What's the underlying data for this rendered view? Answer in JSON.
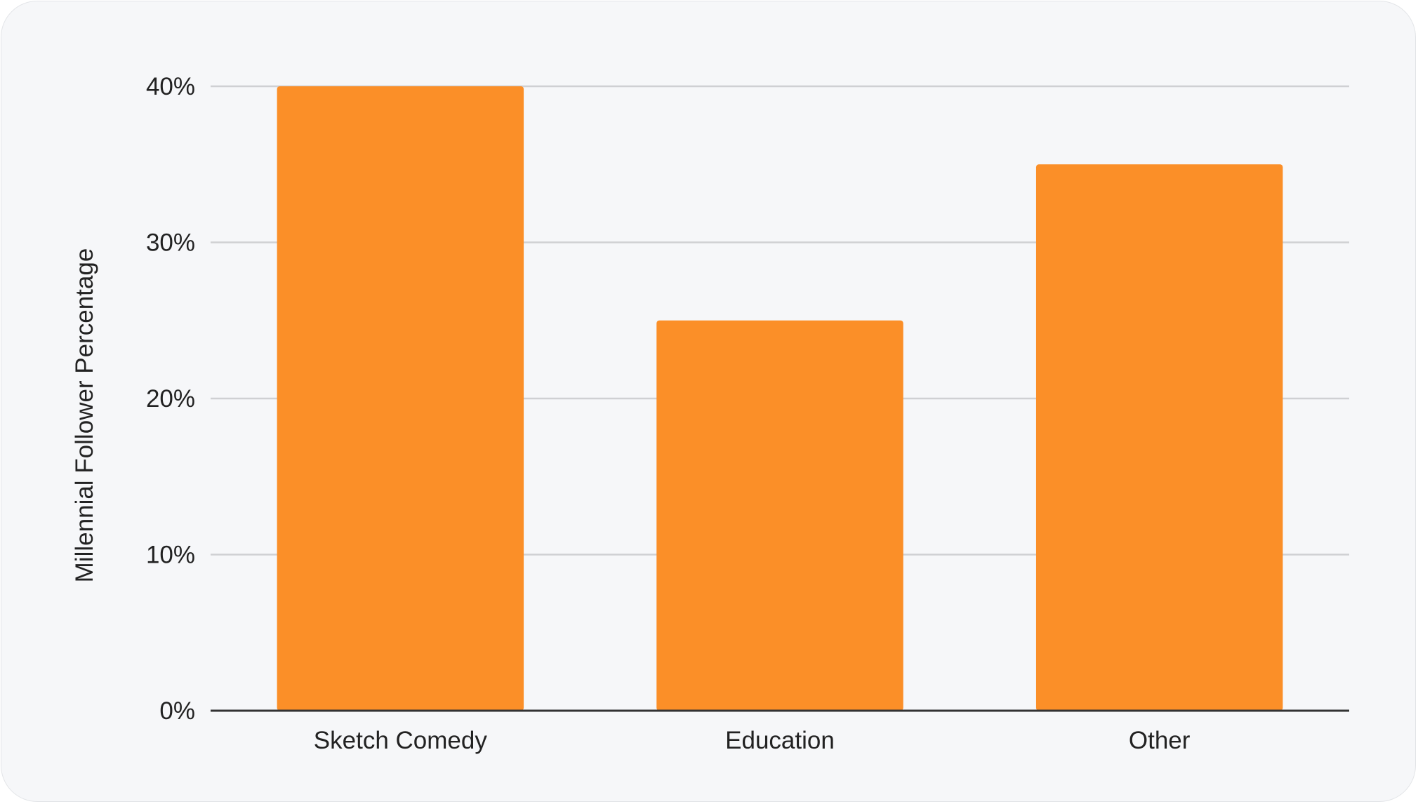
{
  "chart_data": {
    "type": "bar",
    "title": "",
    "xlabel": "",
    "ylabel": "Millennial Follower Percentage",
    "categories": [
      "Sketch Comedy",
      "Education",
      "Other"
    ],
    "values": [
      40,
      25,
      35
    ],
    "ylim": [
      0,
      40
    ],
    "yticks": [
      0,
      10,
      20,
      30,
      40
    ],
    "ytick_labels": [
      "0%",
      "10%",
      "20%",
      "30%",
      "40%"
    ],
    "grid": true,
    "legend": "none",
    "bar_color": "#fb8f28",
    "grid_color": "#cfd0d3",
    "axis_color": "#333333"
  }
}
